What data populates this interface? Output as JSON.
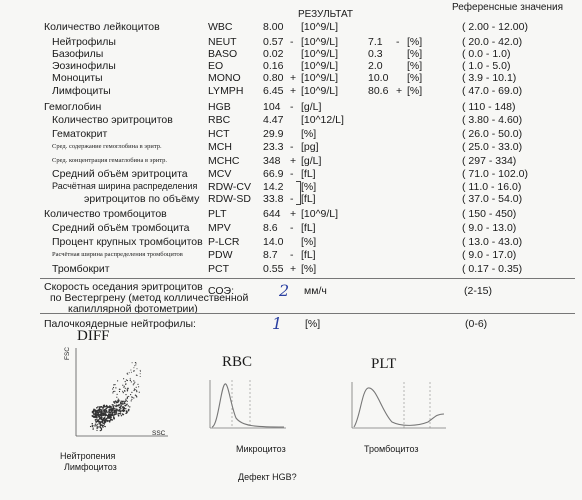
{
  "headers": {
    "result": "РЕЗУЛЬТАТ",
    "reference": "Референсные значения"
  },
  "rows": [
    {
      "name": "Количество лейкоцитов",
      "code": "WBC",
      "value": "8.00",
      "flag": "",
      "unit": "[10^9/L]",
      "pct": "",
      "pflag": "",
      "punit": "",
      "ref": "( 2.00 - 12.00)"
    },
    {
      "name": "Нейтрофилы",
      "code": "NEUT",
      "value": "0.57",
      "flag": "-",
      "unit": "[10^9/L]",
      "pct": "7.1",
      "pflag": "-",
      "punit": "[%]",
      "ref": "( 20.0 - 42.0)"
    },
    {
      "name": "Базофилы",
      "code": "BASO",
      "value": "0.02",
      "flag": "",
      "unit": "[10^9/L]",
      "pct": "0.3",
      "pflag": "",
      "punit": "[%]",
      "ref": "( 0.0 - 1.0)"
    },
    {
      "name": "Эозинофилы",
      "code": "EO",
      "value": "0.16",
      "flag": "",
      "unit": "[10^9/L]",
      "pct": "2.0",
      "pflag": "",
      "punit": "[%]",
      "ref": "( 1.0 - 5.0)"
    },
    {
      "name": "Моноциты",
      "code": "MONO",
      "value": "0.80",
      "flag": "+",
      "unit": "[10^9/L]",
      "pct": "10.0",
      "pflag": "",
      "punit": "[%]",
      "ref": "( 3.9 - 10.1)"
    },
    {
      "name": "Лимфоциты",
      "code": "LYMPH",
      "value": "6.45",
      "flag": "+",
      "unit": "[10^9/L]",
      "pct": "80.6",
      "pflag": "+",
      "punit": "[%]",
      "ref": "( 47.0 - 69.0)"
    },
    {
      "name": "Гемоглобин",
      "code": "HGB",
      "value": "104",
      "flag": "-",
      "unit": "[g/L]",
      "pct": "",
      "pflag": "",
      "punit": "",
      "ref": "( 110 - 148)"
    },
    {
      "name": "Количество эритроцитов",
      "code": "RBC",
      "value": "4.47",
      "flag": "",
      "unit": "[10^12/L]",
      "pct": "",
      "pflag": "",
      "punit": "",
      "ref": "( 3.80 - 4.60)"
    },
    {
      "name": "Гематокрит",
      "code": "HCT",
      "value": "29.9",
      "flag": "",
      "unit": "[%]",
      "pct": "",
      "pflag": "",
      "punit": "",
      "ref": "( 26.0 - 50.0)"
    },
    {
      "name": "Сред. содержание гемоглобина в эритр.",
      "code": "MCH",
      "value": "23.3",
      "flag": "-",
      "unit": "[pg]",
      "pct": "",
      "pflag": "",
      "punit": "",
      "ref": "( 25.0 - 33.0)"
    },
    {
      "name": "Сред. концентрация гемаглобина в эритр.",
      "code": "MCHC",
      "value": "348",
      "flag": "+",
      "unit": "[g/L]",
      "pct": "",
      "pflag": "",
      "punit": "",
      "ref": "( 297 - 334)"
    },
    {
      "name": "Средний объём эритроцита",
      "code": "MCV",
      "value": "66.9",
      "flag": "-",
      "unit": "[fL]",
      "pct": "",
      "pflag": "",
      "punit": "",
      "ref": "( 71.0 - 102.0)"
    },
    {
      "name": "Расчётная ширина распределения",
      "code": "RDW-CV",
      "value": "14.2",
      "flag": "",
      "unit": "[%]",
      "pct": "",
      "pflag": "",
      "punit": "",
      "ref": "( 11.0 - 16.0)"
    },
    {
      "name": "эритроцитов по объёму",
      "code": "RDW-SD",
      "value": "33.8",
      "flag": "-",
      "unit": "[fL]",
      "pct": "",
      "pflag": "",
      "punit": "",
      "ref": "( 37.0 - 54.0)"
    },
    {
      "name": "Количество тромбоцитов",
      "code": "PLT",
      "value": "644",
      "flag": "+",
      "unit": "[10^9/L]",
      "pct": "",
      "pflag": "",
      "punit": "",
      "ref": "( 150 - 450)"
    },
    {
      "name": "Средний объём тромбоцита",
      "code": "MPV",
      "value": "8.6",
      "flag": "-",
      "unit": "[fL]",
      "pct": "",
      "pflag": "",
      "punit": "",
      "ref": "( 9.0 - 13.0)"
    },
    {
      "name": "Процент крупных тромбоцитов",
      "code": "P-LCR",
      "value": "14.0",
      "flag": "",
      "unit": "[%]",
      "pct": "",
      "pflag": "",
      "punit": "",
      "ref": "( 13.0 - 43.0)"
    },
    {
      "name": "Расчётная ширина распределения тромбоцитов",
      "code": "PDW",
      "value": "8.7",
      "flag": "-",
      "unit": "[fL]",
      "pct": "",
      "pflag": "",
      "punit": "",
      "ref": "( 9.0 - 17.0)"
    },
    {
      "name": "Тромбокрит",
      "code": "PCT",
      "value": "0.55",
      "flag": "+",
      "unit": "[%]",
      "pct": "",
      "pflag": "",
      "punit": "",
      "ref": "( 0.17 - 0.35)"
    }
  ],
  "esr": {
    "line1": "Скорость оседания эритроцитов",
    "line2": "по Вестергрену (метод колличественной",
    "line3": "капиллярной фотометрии)",
    "code": "СОЭ:",
    "value": "2",
    "unit": "мм/ч",
    "ref": "(2-15)"
  },
  "band": {
    "label": "Палочкоядерные нейтрофилы:",
    "value": "1",
    "unit": "[%]",
    "ref": "(0-6)"
  },
  "diff": {
    "title": "DIFF",
    "yaxis": "FSC",
    "xaxis": "SSC",
    "note1": "Нейтропения",
    "note2": "Лимфоцитоз"
  },
  "rbc": {
    "title": "RBC",
    "note": "Микроцитоз"
  },
  "plt": {
    "title": "PLT",
    "note": "Тромбоцитоз"
  },
  "footer": "Дефект HGB?"
}
